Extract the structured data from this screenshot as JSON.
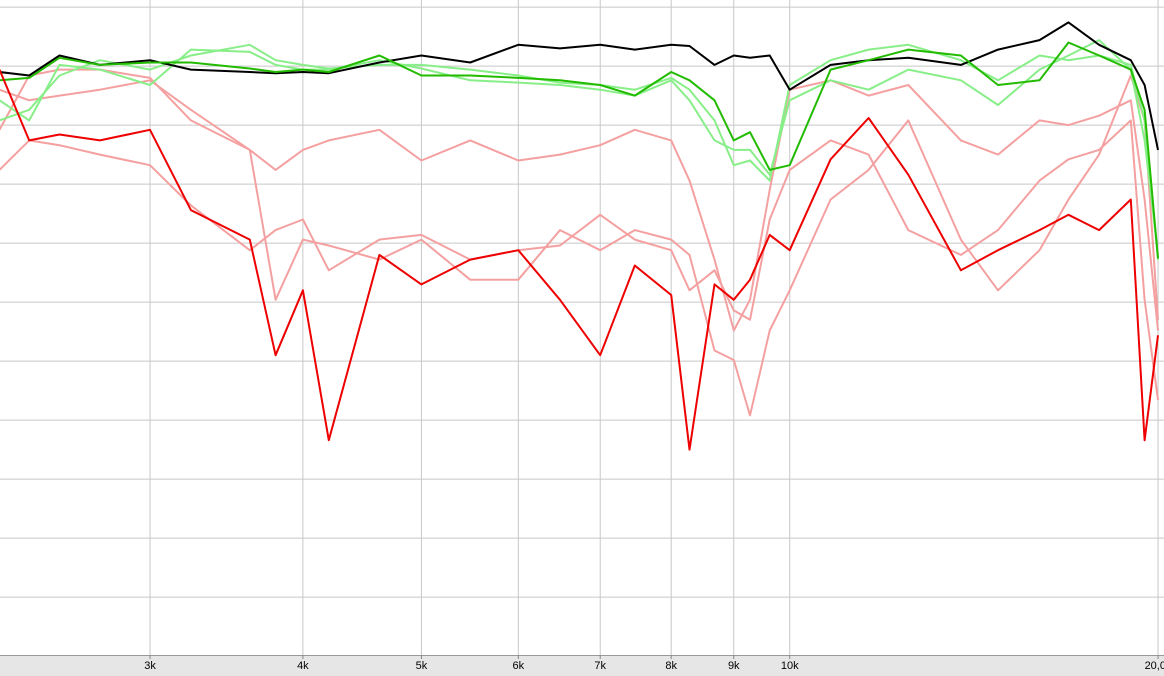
{
  "chart_data": {
    "type": "line",
    "xscale": "log",
    "grid": true,
    "x": [
      2260,
      2390,
      2530,
      2730,
      3000,
      3240,
      3620,
      3800,
      4000,
      4200,
      4620,
      5000,
      5480,
      6000,
      6490,
      7000,
      7470,
      8000,
      8280,
      8680,
      9000,
      9280,
      9630,
      10000,
      10800,
      11600,
      12500,
      13800,
      14800,
      16000,
      16900,
      17900,
      19000,
      19500,
      20000
    ],
    "xlim": [
      2262,
      20226
    ],
    "xticks": [
      {
        "value": 3000,
        "label": "3k"
      },
      {
        "value": 4000,
        "label": "4k"
      },
      {
        "value": 5000,
        "label": "5k"
      },
      {
        "value": 6000,
        "label": "6k"
      },
      {
        "value": 7000,
        "label": "7k"
      },
      {
        "value": 8000,
        "label": "8k"
      },
      {
        "value": 9000,
        "label": "9k"
      },
      {
        "value": 10000,
        "label": "10k"
      },
      {
        "value": 20000,
        "label": "20,0k"
      }
    ],
    "ylim": [
      -54.9,
      0.6
    ],
    "yticks": [
      0,
      -5,
      -10,
      -15,
      -20,
      -25,
      -30,
      -35,
      -40,
      -45,
      -50
    ],
    "series": [
      {
        "color": "#f4a0a0",
        "values": [
          -7.0,
          -7.9,
          -7.5,
          -7.0,
          -6.2,
          -8.7,
          -12.1,
          -13.8,
          -12.1,
          -11.3,
          -10.4,
          -13.0,
          -11.3,
          -13.0,
          -12.5,
          -11.7,
          -10.4,
          -11.3,
          -14.7,
          -21.4,
          -27.4,
          -24.8,
          -15.5,
          -7.0,
          -6.2,
          -7.5,
          -6.6,
          -11.3,
          -12.5,
          -9.6,
          -10.0,
          -9.2,
          -7.9,
          -16.3,
          -27.4
        ]
      },
      {
        "color": "#f4a0a0",
        "values": [
          -13.8,
          -11.3,
          -11.7,
          -12.5,
          -13.4,
          -16.8,
          -20.6,
          -18.9,
          -18.0,
          -22.3,
          -19.7,
          -19.3,
          -21.4,
          -20.6,
          -20.2,
          -17.6,
          -19.7,
          -20.6,
          -24.0,
          -22.3,
          -25.7,
          -26.5,
          -18.0,
          -13.8,
          -11.3,
          -12.5,
          -18.9,
          -21.0,
          -18.9,
          -14.7,
          -12.9,
          -12.1,
          -9.6,
          -24.8,
          -33.3
        ]
      },
      {
        "color": "#f4a0a0",
        "values": [
          -10.4,
          -5.8,
          -5.3,
          -5.3,
          -6.0,
          -9.6,
          -12.1,
          -24.8,
          -19.7,
          -20.2,
          -21.4,
          -19.7,
          -23.1,
          -23.1,
          -18.9,
          -20.6,
          -18.9,
          -19.7,
          -21.0,
          -29.1,
          -29.9,
          -34.6,
          -27.4,
          -24.0,
          -16.3,
          -13.8,
          -9.6,
          -19.7,
          -24.0,
          -20.6,
          -16.3,
          -12.5,
          -5.8,
          -9.6,
          -26.5
        ]
      },
      {
        "color": "#88ee88",
        "values": [
          -7.9,
          -9.6,
          -4.9,
          -5.3,
          -6.6,
          -3.6,
          -3.8,
          -4.9,
          -5.3,
          -5.3,
          -4.5,
          -5.2,
          -6.2,
          -6.4,
          -6.6,
          -7.0,
          -7.5,
          -6.2,
          -7.9,
          -11.3,
          -12.1,
          -12.1,
          -14.2,
          -7.9,
          -6.2,
          -7.0,
          -5.3,
          -6.2,
          -8.3,
          -5.3,
          -4.1,
          -2.8,
          -5.3,
          -11.3,
          -21.0
        ]
      },
      {
        "color": "#88ee88",
        "values": [
          -9.6,
          -8.7,
          -5.8,
          -4.5,
          -5.3,
          -4.1,
          -3.2,
          -4.5,
          -4.9,
          -5.2,
          -4.9,
          -4.9,
          -5.3,
          -5.8,
          -6.4,
          -6.6,
          -7.0,
          -6.0,
          -7.0,
          -9.6,
          -13.4,
          -13.0,
          -14.7,
          -6.6,
          -4.5,
          -3.6,
          -3.2,
          -4.5,
          -6.2,
          -4.1,
          -4.5,
          -4.1,
          -4.9,
          -9.6,
          -21.4
        ]
      },
      {
        "color": "#000000",
        "values": [
          -5.5,
          -5.8,
          -4.1,
          -4.9,
          -4.5,
          -5.3,
          -5.5,
          -5.6,
          -5.5,
          -5.6,
          -4.7,
          -4.1,
          -4.7,
          -3.2,
          -3.5,
          -3.2,
          -3.6,
          -3.2,
          -3.3,
          -4.9,
          -4.1,
          -4.3,
          -4.1,
          -7.0,
          -4.9,
          -4.5,
          -4.3,
          -4.9,
          -3.6,
          -2.8,
          -1.3,
          -3.2,
          -4.5,
          -6.6,
          -12.1
        ]
      },
      {
        "color": "#22bb00",
        "values": [
          -6.2,
          -6.0,
          -4.3,
          -4.9,
          -4.7,
          -4.7,
          -5.2,
          -5.5,
          -5.3,
          -5.5,
          -4.1,
          -5.8,
          -5.8,
          -6.0,
          -6.2,
          -6.6,
          -7.5,
          -5.5,
          -6.2,
          -7.9,
          -11.3,
          -10.6,
          -13.8,
          -13.4,
          -5.3,
          -4.5,
          -3.6,
          -4.1,
          -6.6,
          -6.2,
          -3.0,
          -4.1,
          -5.3,
          -8.7,
          -21.3
        ]
      },
      {
        "color": "#ee0000",
        "values": [
          -5.3,
          -11.3,
          -10.8,
          -11.3,
          -10.4,
          -17.2,
          -19.7,
          -29.5,
          -24.0,
          -36.7,
          -21.0,
          -23.5,
          -21.4,
          -20.6,
          -24.8,
          -29.5,
          -21.9,
          -24.4,
          -37.5,
          -23.5,
          -24.8,
          -23.1,
          -19.3,
          -20.6,
          -12.9,
          -9.4,
          -14.2,
          -22.3,
          -20.6,
          -18.9,
          -17.6,
          -18.9,
          -16.3,
          -36.7,
          -27.8
        ]
      }
    ]
  }
}
